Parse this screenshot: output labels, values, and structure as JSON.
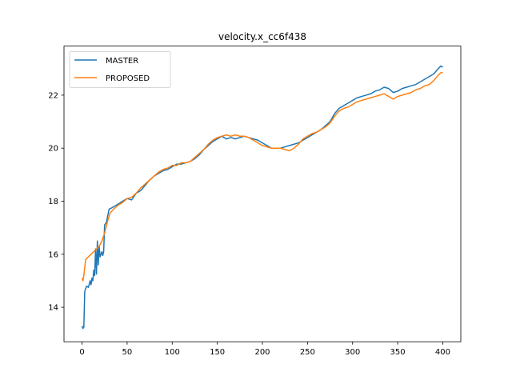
{
  "chart_data": {
    "type": "line",
    "title": "velocity.x_cc6f438",
    "xlabel": "",
    "ylabel": "",
    "xlim": [
      -20,
      420
    ],
    "ylim": [
      12.7,
      23.85
    ],
    "xticks": [
      0,
      50,
      100,
      150,
      200,
      250,
      300,
      350,
      400
    ],
    "yticks": [
      14,
      16,
      18,
      20,
      22
    ],
    "grid": false,
    "legend_position": "top-left",
    "series": [
      {
        "name": "MASTER",
        "color": "#1f77b4",
        "points": [
          [
            0,
            13.3
          ],
          [
            1,
            13.2
          ],
          [
            2,
            13.25
          ],
          [
            3,
            14.6
          ],
          [
            5,
            14.8
          ],
          [
            7,
            14.75
          ],
          [
            9,
            15.0
          ],
          [
            10,
            14.85
          ],
          [
            11,
            15.1
          ],
          [
            12,
            15.0
          ],
          [
            13,
            15.4
          ],
          [
            14,
            15.2
          ],
          [
            15,
            16.2
          ],
          [
            16,
            15.25
          ],
          [
            17,
            16.5
          ],
          [
            18,
            15.6
          ],
          [
            19,
            16.3
          ],
          [
            20,
            15.9
          ],
          [
            21,
            16.0
          ],
          [
            22,
            16.1
          ],
          [
            23,
            15.95
          ],
          [
            24,
            16.1
          ],
          [
            25,
            17.1
          ],
          [
            27,
            17.2
          ],
          [
            30,
            17.7
          ],
          [
            33,
            17.75
          ],
          [
            38,
            17.85
          ],
          [
            45,
            18.0
          ],
          [
            50,
            18.1
          ],
          [
            55,
            18.05
          ],
          [
            60,
            18.3
          ],
          [
            65,
            18.4
          ],
          [
            70,
            18.6
          ],
          [
            75,
            18.8
          ],
          [
            80,
            18.95
          ],
          [
            85,
            19.05
          ],
          [
            90,
            19.15
          ],
          [
            95,
            19.2
          ],
          [
            100,
            19.3
          ],
          [
            105,
            19.4
          ],
          [
            110,
            19.4
          ],
          [
            115,
            19.45
          ],
          [
            120,
            19.5
          ],
          [
            125,
            19.6
          ],
          [
            130,
            19.75
          ],
          [
            135,
            19.95
          ],
          [
            140,
            20.1
          ],
          [
            145,
            20.25
          ],
          [
            150,
            20.35
          ],
          [
            155,
            20.45
          ],
          [
            160,
            20.35
          ],
          [
            165,
            20.4
          ],
          [
            170,
            20.35
          ],
          [
            175,
            20.4
          ],
          [
            180,
            20.45
          ],
          [
            185,
            20.4
          ],
          [
            190,
            20.35
          ],
          [
            195,
            20.3
          ],
          [
            200,
            20.2
          ],
          [
            205,
            20.1
          ],
          [
            210,
            20.0
          ],
          [
            215,
            20.0
          ],
          [
            220,
            20.0
          ],
          [
            225,
            20.05
          ],
          [
            230,
            20.1
          ],
          [
            235,
            20.15
          ],
          [
            240,
            20.2
          ],
          [
            245,
            20.3
          ],
          [
            250,
            20.4
          ],
          [
            255,
            20.5
          ],
          [
            260,
            20.6
          ],
          [
            265,
            20.7
          ],
          [
            270,
            20.85
          ],
          [
            275,
            21.0
          ],
          [
            280,
            21.3
          ],
          [
            285,
            21.5
          ],
          [
            290,
            21.6
          ],
          [
            295,
            21.7
          ],
          [
            300,
            21.8
          ],
          [
            305,
            21.9
          ],
          [
            310,
            21.95
          ],
          [
            315,
            22.0
          ],
          [
            320,
            22.05
          ],
          [
            325,
            22.15
          ],
          [
            330,
            22.2
          ],
          [
            335,
            22.3
          ],
          [
            340,
            22.25
          ],
          [
            345,
            22.1
          ],
          [
            350,
            22.15
          ],
          [
            355,
            22.25
          ],
          [
            360,
            22.3
          ],
          [
            365,
            22.35
          ],
          [
            370,
            22.4
          ],
          [
            375,
            22.5
          ],
          [
            380,
            22.6
          ],
          [
            385,
            22.7
          ],
          [
            390,
            22.8
          ],
          [
            395,
            23.0
          ],
          [
            398,
            23.1
          ],
          [
            400,
            23.05
          ]
        ]
      },
      {
        "name": "PROPOSED",
        "color": "#ff7f0e",
        "points": [
          [
            0,
            15.1
          ],
          [
            1,
            15.0
          ],
          [
            2,
            15.2
          ],
          [
            4,
            15.8
          ],
          [
            7,
            15.9
          ],
          [
            10,
            16.0
          ],
          [
            13,
            16.1
          ],
          [
            16,
            16.2
          ],
          [
            19,
            16.3
          ],
          [
            22,
            16.5
          ],
          [
            25,
            16.8
          ],
          [
            28,
            17.2
          ],
          [
            31,
            17.55
          ],
          [
            35,
            17.7
          ],
          [
            40,
            17.85
          ],
          [
            45,
            17.95
          ],
          [
            50,
            18.1
          ],
          [
            55,
            18.15
          ],
          [
            60,
            18.3
          ],
          [
            65,
            18.5
          ],
          [
            70,
            18.65
          ],
          [
            75,
            18.8
          ],
          [
            80,
            18.95
          ],
          [
            85,
            19.1
          ],
          [
            90,
            19.2
          ],
          [
            95,
            19.25
          ],
          [
            100,
            19.35
          ],
          [
            105,
            19.35
          ],
          [
            110,
            19.45
          ],
          [
            115,
            19.45
          ],
          [
            120,
            19.5
          ],
          [
            125,
            19.65
          ],
          [
            130,
            19.8
          ],
          [
            135,
            19.95
          ],
          [
            140,
            20.15
          ],
          [
            145,
            20.3
          ],
          [
            150,
            20.4
          ],
          [
            155,
            20.45
          ],
          [
            160,
            20.5
          ],
          [
            165,
            20.45
          ],
          [
            170,
            20.5
          ],
          [
            175,
            20.45
          ],
          [
            180,
            20.45
          ],
          [
            185,
            20.4
          ],
          [
            190,
            20.3
          ],
          [
            195,
            20.2
          ],
          [
            200,
            20.1
          ],
          [
            205,
            20.05
          ],
          [
            210,
            20.0
          ],
          [
            215,
            20.0
          ],
          [
            220,
            20.0
          ],
          [
            225,
            19.95
          ],
          [
            230,
            19.9
          ],
          [
            235,
            20.0
          ],
          [
            240,
            20.15
          ],
          [
            245,
            20.35
          ],
          [
            250,
            20.45
          ],
          [
            255,
            20.55
          ],
          [
            260,
            20.6
          ],
          [
            265,
            20.7
          ],
          [
            270,
            20.8
          ],
          [
            275,
            20.95
          ],
          [
            280,
            21.2
          ],
          [
            285,
            21.4
          ],
          [
            290,
            21.5
          ],
          [
            295,
            21.55
          ],
          [
            300,
            21.65
          ],
          [
            305,
            21.75
          ],
          [
            310,
            21.8
          ],
          [
            315,
            21.85
          ],
          [
            320,
            21.9
          ],
          [
            325,
            21.95
          ],
          [
            330,
            22.0
          ],
          [
            335,
            22.05
          ],
          [
            340,
            21.95
          ],
          [
            345,
            21.85
          ],
          [
            350,
            21.95
          ],
          [
            355,
            22.0
          ],
          [
            360,
            22.05
          ],
          [
            365,
            22.1
          ],
          [
            370,
            22.2
          ],
          [
            375,
            22.25
          ],
          [
            380,
            22.35
          ],
          [
            385,
            22.4
          ],
          [
            390,
            22.55
          ],
          [
            395,
            22.75
          ],
          [
            398,
            22.85
          ],
          [
            400,
            22.85
          ]
        ]
      }
    ]
  }
}
